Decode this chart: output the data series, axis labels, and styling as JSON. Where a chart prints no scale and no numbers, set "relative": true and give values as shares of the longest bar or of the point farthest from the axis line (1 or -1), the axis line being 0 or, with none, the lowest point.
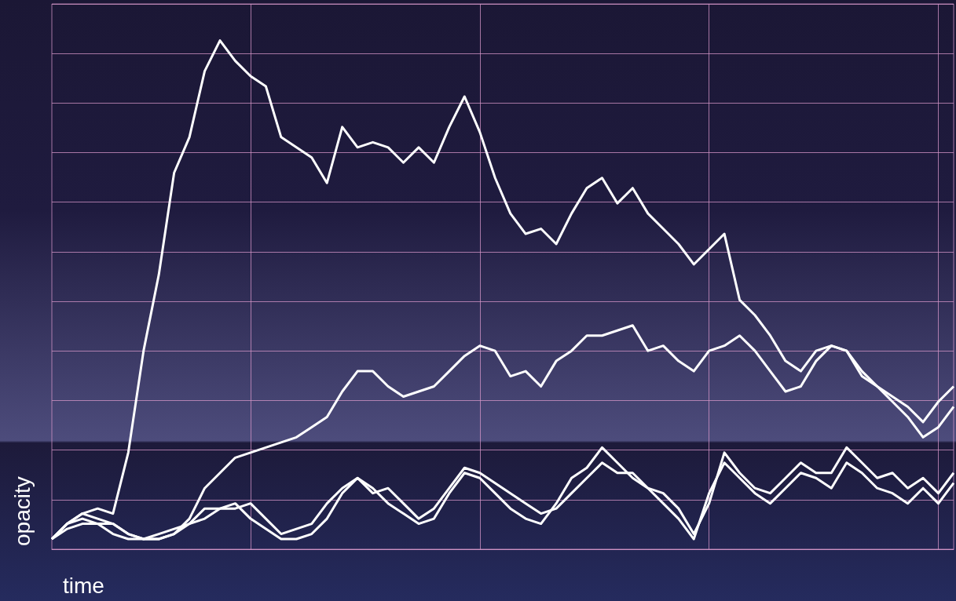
{
  "chart_data": {
    "type": "line",
    "xlabel": "time",
    "ylabel": "opacity",
    "relative": true,
    "grid": true,
    "categories": [
      null,
      null,
      null,
      null,
      null,
      null,
      null,
      null,
      null,
      null,
      null,
      null,
      null,
      null,
      null,
      null,
      null,
      null,
      null,
      null,
      null,
      null,
      null,
      null,
      null,
      null,
      null,
      null,
      null,
      null,
      null,
      null,
      null,
      null,
      null,
      null,
      null,
      null,
      null,
      null,
      null,
      null,
      null,
      null,
      null,
      null,
      null,
      null,
      null,
      null,
      null,
      null,
      null,
      null,
      null,
      null,
      null,
      null,
      null,
      null
    ],
    "series": [
      {
        "color": "#ffffff",
        "values": [
          0.02,
          0.05,
          0.07,
          0.08,
          0.07,
          0.19,
          0.39,
          0.54,
          0.74,
          0.81,
          0.94,
          1.0,
          0.96,
          0.93,
          0.91,
          0.81,
          0.79,
          0.77,
          0.72,
          0.83,
          0.79,
          0.8,
          0.79,
          0.76,
          0.79,
          0.76,
          0.83,
          0.89,
          0.82,
          0.73,
          0.66,
          0.62,
          0.63,
          0.6,
          0.66,
          0.71,
          0.73,
          0.68,
          0.71,
          0.66,
          0.63,
          0.6,
          0.56,
          0.59,
          0.62,
          0.49,
          0.46,
          0.42,
          0.37,
          0.35,
          0.39,
          0.4,
          0.39,
          0.35,
          0.32,
          0.29,
          0.26,
          0.22,
          0.24,
          0.28
        ]
      },
      {
        "color": "#ffffff",
        "values": [
          0.02,
          0.05,
          0.06,
          0.05,
          0.05,
          0.03,
          0.02,
          0.02,
          0.03,
          0.06,
          0.12,
          0.15,
          0.18,
          0.19,
          0.2,
          0.21,
          0.22,
          0.24,
          0.26,
          0.31,
          0.35,
          0.35,
          0.32,
          0.3,
          0.31,
          0.32,
          0.35,
          0.38,
          0.4,
          0.39,
          0.34,
          0.35,
          0.32,
          0.37,
          0.39,
          0.42,
          0.42,
          0.43,
          0.44,
          0.39,
          0.4,
          0.37,
          0.35,
          0.39,
          0.4,
          0.42,
          0.39,
          0.35,
          0.31,
          0.32,
          0.37,
          0.4,
          0.39,
          0.34,
          0.32,
          0.3,
          0.28,
          0.25,
          0.29,
          0.32
        ]
      },
      {
        "color": "#ffffff",
        "values": [
          0.02,
          0.05,
          0.07,
          0.06,
          0.05,
          0.03,
          0.02,
          0.03,
          0.04,
          0.05,
          0.08,
          0.08,
          0.08,
          0.09,
          0.06,
          0.03,
          0.04,
          0.05,
          0.09,
          0.12,
          0.14,
          0.11,
          0.12,
          0.09,
          0.06,
          0.08,
          0.12,
          0.16,
          0.15,
          0.13,
          0.11,
          0.09,
          0.07,
          0.08,
          0.11,
          0.14,
          0.17,
          0.15,
          0.15,
          0.12,
          0.11,
          0.08,
          0.03,
          0.09,
          0.19,
          0.15,
          0.12,
          0.11,
          0.14,
          0.17,
          0.15,
          0.15,
          0.2,
          0.17,
          0.14,
          0.15,
          0.12,
          0.14,
          0.11,
          0.15
        ]
      },
      {
        "color": "#ffffff",
        "values": [
          0.02,
          0.04,
          0.05,
          0.05,
          0.03,
          0.02,
          0.02,
          0.02,
          0.03,
          0.05,
          0.06,
          0.08,
          0.09,
          0.06,
          0.04,
          0.02,
          0.02,
          0.03,
          0.06,
          0.11,
          0.14,
          0.12,
          0.09,
          0.07,
          0.05,
          0.06,
          0.11,
          0.15,
          0.14,
          0.11,
          0.08,
          0.06,
          0.05,
          0.09,
          0.14,
          0.16,
          0.2,
          0.17,
          0.14,
          0.12,
          0.09,
          0.06,
          0.02,
          0.11,
          0.17,
          0.14,
          0.11,
          0.09,
          0.12,
          0.15,
          0.14,
          0.12,
          0.17,
          0.15,
          0.12,
          0.11,
          0.09,
          0.12,
          0.09,
          0.13
        ]
      }
    ]
  }
}
